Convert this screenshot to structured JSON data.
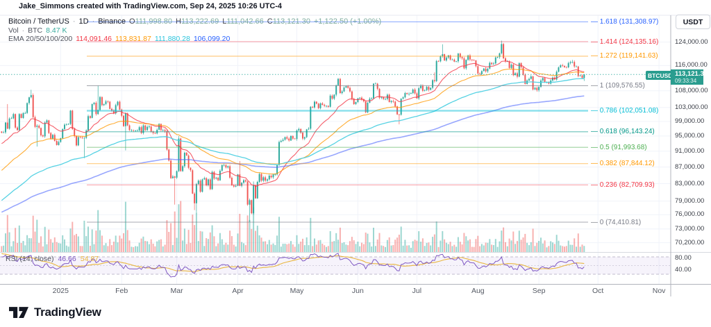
{
  "header": {
    "text": "Jake_Simmons created with TradingView.com, Sep 24, 2025 10:26 UTC-4"
  },
  "legend": {
    "title": "Bitcoin / TetherUS",
    "sep1": "·",
    "interval": "1D",
    "sep2": "·",
    "exchange": "Binance",
    "o_key": "O",
    "o": "111,998.80",
    "h_key": "H",
    "h": "113,222.69",
    "l_key": "L",
    "l": "111,042.66",
    "c_key": "C",
    "c": "113,121.30",
    "change": "+1,122.50 (+1.00%)",
    "vol_label": "Vol",
    "vol_sep": "·",
    "vol_unit": "BTC",
    "vol_value": "8.47 K",
    "ema_label": "EMA 20/50/100/200",
    "ema20": "114,091.46",
    "ema50": "113,831.87",
    "ema100": "111,880.28",
    "ema200": "106,099.20"
  },
  "rsi_legend": {
    "label": "RSI (14, close)",
    "value": "46.66",
    "ma": "54.87"
  },
  "price_axis": {
    "currency": "USDT",
    "symbol_badge": "BTCUSDT",
    "last_price": "113,121.30",
    "countdown": "09:33:34",
    "ticks": [
      {
        "label": "124,000.00",
        "price": 124000
      },
      {
        "label": "116,000.00",
        "price": 116000
      },
      {
        "label": "108,000.00",
        "price": 108000
      },
      {
        "label": "103,000.00",
        "price": 103000
      },
      {
        "label": "99,000.00",
        "price": 99000
      },
      {
        "label": "95,000.00",
        "price": 95000
      },
      {
        "label": "91,000.00",
        "price": 91000
      },
      {
        "label": "87,000.00",
        "price": 87000
      },
      {
        "label": "83,000.00",
        "price": 83000
      },
      {
        "label": "79,000.00",
        "price": 79000
      },
      {
        "label": "76,000.00",
        "price": 76000
      },
      {
        "label": "73,000.00",
        "price": 73000
      },
      {
        "label": "70,200.00",
        "price": 70200
      }
    ],
    "rsi_ticks": [
      {
        "label": "80.00",
        "value": 80
      },
      {
        "label": "40.00",
        "value": 40
      }
    ]
  },
  "time_axis": {
    "ticks": [
      {
        "label": "2025",
        "day": 30
      },
      {
        "label": "Feb",
        "day": 61
      },
      {
        "label": "Mar",
        "day": 89
      },
      {
        "label": "Apr",
        "day": 120
      },
      {
        "label": "May",
        "day": 150
      },
      {
        "label": "Jun",
        "day": 181
      },
      {
        "label": "Jul",
        "day": 211
      },
      {
        "label": "Aug",
        "day": 242
      },
      {
        "label": "Sep",
        "day": 273
      },
      {
        "label": "Oct",
        "day": 303
      },
      {
        "label": "Nov",
        "day": 334
      }
    ]
  },
  "brand": {
    "name": "TradingView"
  },
  "colors": {
    "up": "#26a69a",
    "down": "#ef5350",
    "vol_up": "rgba(38,166,154,0.45)",
    "vol_down": "rgba(239,83,80,0.45)",
    "ohlc_value": "#7dab9f",
    "vol_value": "#35a99c",
    "ema20": "#f23645",
    "ema50": "#ff9800",
    "ema100": "#29c4dd",
    "ema200": "#2962ff",
    "ema20_line": "rgba(242,54,69,0.8)",
    "ema50_line": "rgba(255,152,0,0.8)",
    "ema100_line": "rgba(77,208,225,0.95)",
    "ema200_line": "rgba(83,109,254,0.6)",
    "rsi_line": "#7e57c2",
    "rsi_ma": "#e9b63f",
    "rsi_band": "rgba(126,87,194,0.07)",
    "badge_bg": "#2a9d8f",
    "last_price_line": "#26a69a",
    "grid": "#f0f3fa",
    "border": "#b0b3bc",
    "separator": "#d6d9e0",
    "pane_top": "#e7eaf0"
  },
  "chart_data": {
    "type": "candlestick",
    "symbol": "BTCUSDT",
    "interval": "1D",
    "x0": 2.3,
    "dx": 2.8346,
    "price_scale": {
      "type": "log",
      "top_price": 133780,
      "bottom_price": 68300
    },
    "current_price": 113121.3,
    "current_ohlc": {
      "open": 111998.8,
      "high": 113222.69,
      "low": 111042.66,
      "close": 113121.3
    },
    "current_volume_kbtc": 8.47,
    "rsi_current": 46.66,
    "rsi_ma_current": 54.87,
    "ema_current": {
      "ema20": 114091.46,
      "ema50": 113831.87,
      "ema100": 111880.28,
      "ema200": 106099.2
    },
    "fib_levels": [
      {
        "ratio": "1.618",
        "price": 131308.97,
        "label": "1.618 (131,308.97)",
        "color": "#2962ff",
        "line": "rgba(41,98,255,0.55)",
        "w": 1.1
      },
      {
        "ratio": "1.414",
        "price": 124135.16,
        "label": "1.414 (124,135.16)",
        "color": "#f23645",
        "line": "rgba(242,54,69,0.5)",
        "w": 1.1
      },
      {
        "ratio": "1.272",
        "price": 119141.63,
        "label": "1.272 (119,141.63)",
        "color": "#ff9800",
        "line": "rgba(255,152,0,0.55)",
        "w": 1.1
      },
      {
        "ratio": "1",
        "price": 109576.55,
        "label": "1 (109,576.55)",
        "color": "#787b86",
        "line": "rgba(120,123,134,0.65)",
        "w": 1.1
      },
      {
        "ratio": "0.786",
        "price": 102051.08,
        "label": "0.786 (102,051.08)",
        "color": "#00bcd4",
        "line": "rgba(0,188,212,0.45)",
        "w": 2.4
      },
      {
        "ratio": "0.618",
        "price": 96143.24,
        "label": "0.618 (96,143.24)",
        "color": "#009688",
        "line": "rgba(0,150,136,0.6)",
        "w": 1.1
      },
      {
        "ratio": "0.5",
        "price": 91993.68,
        "label": "0.5 (91,993.68)",
        "color": "#4caf50",
        "line": "rgba(76,175,80,0.55)",
        "w": 1.1
      },
      {
        "ratio": "0.382",
        "price": 87844.12,
        "label": "0.382 (87,844.12)",
        "color": "#ff9800",
        "line": "rgba(255,152,0,0.5)",
        "w": 1.1
      },
      {
        "ratio": "0.236",
        "price": 82709.93,
        "label": "0.236 (82,709.93)",
        "color": "#f23645",
        "line": "rgba(242,54,69,0.45)",
        "w": 1.1
      },
      {
        "ratio": "0",
        "price": 74410.81,
        "label": "0 (74,410.81)",
        "color": "#787b86",
        "line": "rgba(120,123,134,0.65)",
        "w": 1.1
      }
    ],
    "pre_closes_k": [
      69.4,
      69.0,
      67.8,
      69.4,
      75.6,
      75.9,
      76.7,
      80.4,
      87.0,
      88.7,
      87.3,
      91.1,
      90.6,
      87.3,
      90.4,
      89.9,
      90.0,
      92.3,
      94.3,
      97.0,
      98.4,
      98.9,
      97.7,
      98.0,
      96.4,
      94.9,
      95.9,
      97.2,
      96.6,
      96.2
    ],
    "closes_k": [
      95.9,
      96.0,
      98.7,
      97.0,
      99.8,
      99.9,
      101.1,
      97.3,
      96.6,
      101.1,
      100.0,
      101.4,
      101.4,
      104.3,
      106.0,
      106.7,
      100.2,
      97.5,
      97.8,
      97.2,
      95.2,
      94.9,
      98.7,
      99.3,
      95.8,
      94.3,
      95.3,
      93.7,
      92.6,
      93.4,
      94.4,
      96.9,
      98.1,
      98.2,
      98.3,
      102.1,
      96.9,
      95.0,
      92.5,
      94.7,
      94.6,
      94.5,
      94.5,
      96.5,
      100.5,
      100.0,
      104.0,
      104.4,
      101.1,
      102.3,
      106.1,
      103.7,
      104.0,
      104.8,
      104.7,
      102.6,
      102.1,
      101.3,
      103.7,
      104.7,
      102.4,
      100.6,
      97.7,
      101.3,
      97.9,
      96.6,
      96.6,
      96.5,
      96.5,
      96.5,
      97.4,
      95.8,
      97.9,
      96.6,
      97.5,
      97.6,
      96.2,
      95.8,
      95.7,
      96.7,
      98.3,
      96.6,
      96.6,
      96.3,
      91.4,
      88.6,
      84.3,
      84.7,
      84.4,
      86.0,
      94.3,
      86.0,
      87.2,
      90.6,
      89.9,
      86.8,
      86.2,
      80.7,
      78.5,
      82.9,
      83.7,
      81.1,
      84.0,
      84.3,
      82.6,
      84.0,
      81.7,
      85.8,
      84.2,
      84.4,
      83.8,
      86.1,
      87.5,
      87.5,
      86.9,
      87.2,
      84.4,
      82.6,
      82.3,
      82.5,
      85.2,
      82.5,
      83.2,
      83.8,
      83.5,
      78.2,
      79.2,
      76.3,
      82.6,
      79.6,
      83.4,
      85.3,
      83.7,
      84.5,
      83.7,
      84.0,
      84.9,
      84.5,
      85.2,
      85.2,
      87.5,
      93.4,
      93.7,
      94.0,
      94.7,
      94.3,
      93.8,
      95.0,
      94.3,
      94.2,
      96.5,
      96.9,
      95.9,
      94.3,
      94.7,
      96.8,
      97.0,
      103.2,
      103.0,
      104.7,
      104.1,
      102.8,
      104.2,
      103.8,
      103.5,
      103.5,
      103.2,
      106.5,
      105.6,
      106.8,
      109.7,
      111.7,
      107.3,
      107.8,
      109.0,
      109.4,
      108.9,
      107.8,
      105.6,
      104.0,
      104.6,
      105.7,
      105.9,
      105.4,
      104.8,
      101.6,
      104.4,
      105.6,
      105.7,
      110.2,
      110.2,
      108.6,
      105.9,
      106.0,
      105.5,
      105.5,
      106.8,
      104.6,
      104.9,
      104.7,
      103.3,
      101.0,
      100.9,
      105.6,
      106.0,
      107.3,
      107.0,
      107.1,
      107.3,
      108.4,
      107.2,
      105.7,
      108.8,
      109.6,
      108.0,
      108.2,
      109.2,
      108.3,
      108.9,
      111.3,
      111.0,
      117.5,
      117.4,
      119.1,
      119.8,
      117.7,
      118.7,
      119.4,
      118.0,
      118.0,
      117.3,
      117.4,
      120.0,
      118.8,
      118.4,
      115.1,
      117.9,
      119.4,
      118.0,
      117.8,
      117.7,
      115.8,
      113.4,
      113.2,
      114.2,
      115.0,
      114.1,
      115.0,
      116.9,
      116.5,
      116.7,
      118.7,
      118.8,
      120.1,
      123.3,
      118.4,
      117.4,
      117.4,
      115.2,
      116.3,
      112.9,
      113.5,
      112.4,
      116.8,
      115.4,
      113.0,
      110.1,
      111.2,
      111.7,
      112.5,
      108.4,
      108.9,
      108.2,
      109.2,
      111.2,
      112.0,
      110.7,
      110.7,
      110.2,
      111.2,
      112.1,
      111.5,
      114.0,
      115.4,
      116.1,
      115.9,
      115.5,
      115.4,
      116.8,
      117.1,
      117.2,
      115.7,
      115.7,
      112.6,
      112.8,
      112.0,
      113.1
    ],
    "wick_overrides": {
      "3": {
        "h": 104.0
      },
      "15": {
        "h": 108.3
      },
      "18": {
        "l": 92.2
      },
      "42": {
        "l": 89.2
      },
      "49": {
        "h": 109.6
      },
      "63": {
        "l": 91.2
      },
      "88": {
        "l": 78.2
      },
      "90": {
        "h": 95.0
      },
      "98": {
        "l": 77.0
      },
      "99": {
        "l": 76.6
      },
      "121": {
        "h": 88.5
      },
      "126": {
        "l": 74.42
      },
      "128": {
        "h": 83.5
      },
      "171": {
        "h": 111.98
      },
      "202": {
        "l": 98.2
      },
      "220": {
        "h": 113.8
      },
      "224": {
        "h": 123.22
      },
      "254": {
        "h": 124.5
      },
      "290": {
        "h": 117.9
      },
      "296": {
        "o": 111.9988,
        "h": 113.22269,
        "l": 111.04266,
        "c": 113.1213
      }
    },
    "ema_seeds_k": {
      "ema20": 70,
      "ema50": 74,
      "ema100": 70,
      "ema200": 72
    },
    "rsi": {
      "period": 14,
      "ma_period": 14,
      "band": [
        30,
        70
      ],
      "mid": 50
    }
  }
}
